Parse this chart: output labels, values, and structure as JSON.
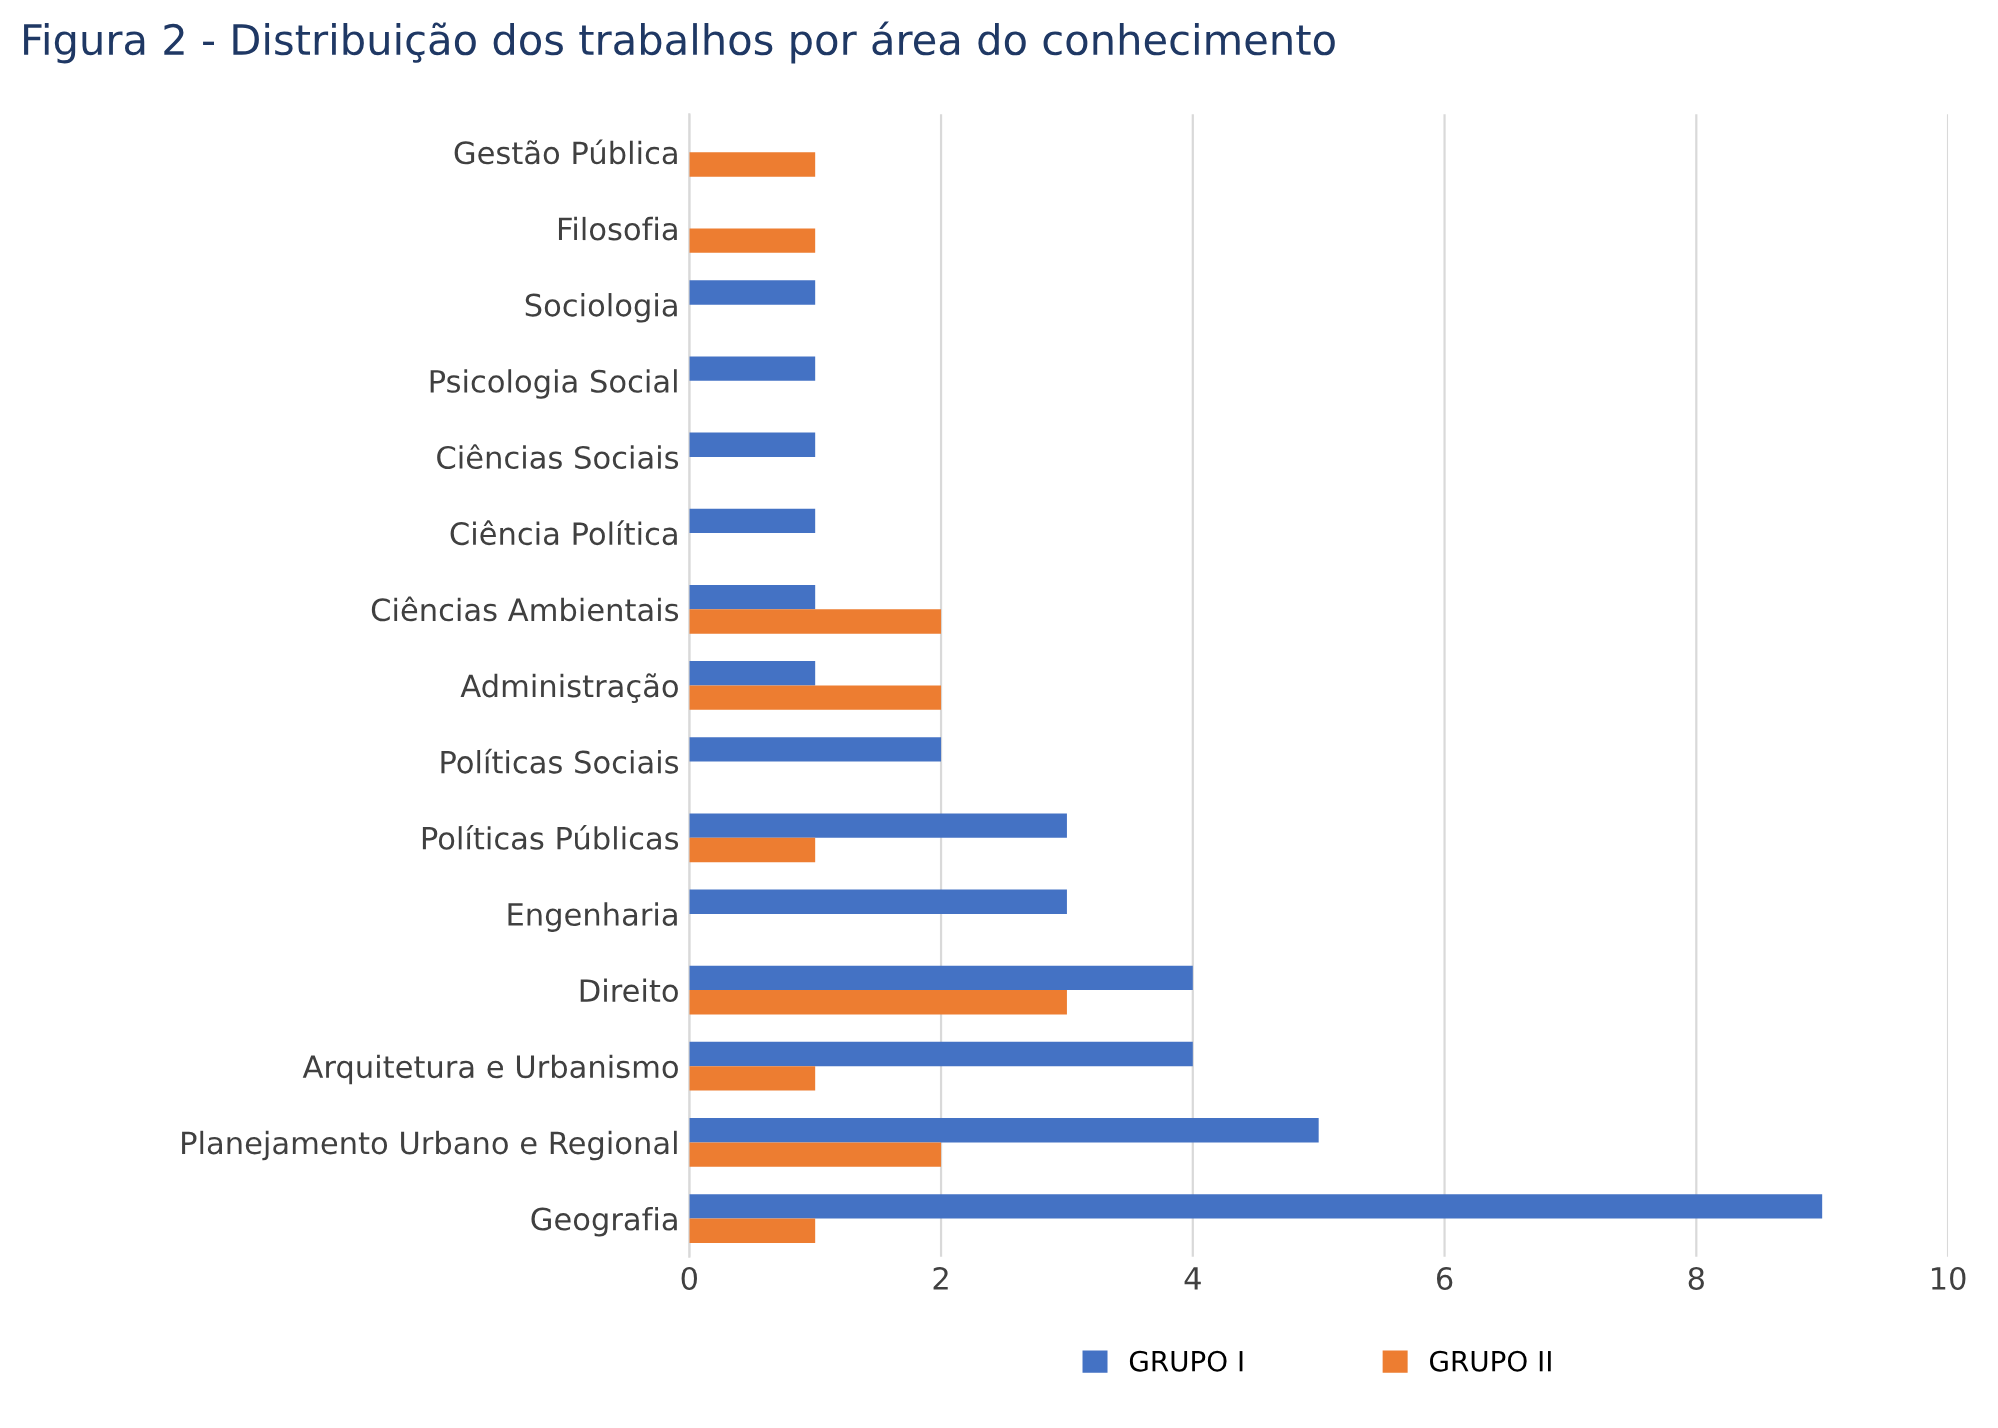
{
  "chart_data": {
    "type": "bar",
    "orientation": "horizontal",
    "title": "Figura 2 - Distribuição dos trabalhos por área do conhecimento",
    "categories": [
      "Gestão Pública",
      "Filosofia",
      "Sociologia",
      "Psicologia Social",
      "Ciências Sociais",
      "Ciência Política",
      "Ciências Ambientais",
      "Administração",
      "Políticas Sociais",
      "Políticas Públicas",
      "Engenharia",
      "Direito",
      "Arquitetura e Urbanismo",
      "Planejamento Urbano e Regional",
      "Geografia"
    ],
    "series": [
      {
        "name": "GRUPO I",
        "color": "#4472c4",
        "values": [
          null,
          null,
          1,
          1,
          1,
          1,
          1,
          1,
          2,
          3,
          3,
          4,
          4,
          5,
          9
        ]
      },
      {
        "name": "GRUPO II",
        "color": "#ed7d31",
        "values": [
          1,
          1,
          null,
          null,
          null,
          null,
          2,
          2,
          null,
          1,
          null,
          3,
          1,
          2,
          1
        ]
      }
    ],
    "xlim": [
      0,
      10
    ],
    "xticks": [
      0,
      2,
      4,
      6,
      8,
      10
    ],
    "grid": "x",
    "legend": "bottom"
  }
}
